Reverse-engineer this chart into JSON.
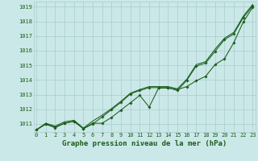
{
  "title": "Graphe pression niveau de la mer (hPa)",
  "bg_color": "#cbe8e8",
  "grid_color": "#a8cccc",
  "line_color": "#1a5c1a",
  "xlim": [
    -0.3,
    23.3
  ],
  "ylim": [
    1010.45,
    1019.35
  ],
  "yticks": [
    1011,
    1012,
    1013,
    1014,
    1015,
    1016,
    1017,
    1018,
    1019
  ],
  "xticks": [
    0,
    1,
    2,
    3,
    4,
    5,
    6,
    7,
    8,
    9,
    10,
    11,
    12,
    13,
    14,
    15,
    16,
    17,
    18,
    19,
    20,
    21,
    22,
    23
  ],
  "line_smooth": [
    1010.6,
    1011.05,
    1010.85,
    1011.15,
    1011.25,
    1010.72,
    1011.2,
    1011.6,
    1012.05,
    1012.55,
    1013.1,
    1013.35,
    1013.55,
    1013.55,
    1013.55,
    1013.4,
    1014.05,
    1015.05,
    1015.25,
    1016.1,
    1016.85,
    1017.25,
    1018.35,
    1019.15
  ],
  "line_with_markers1": [
    1010.6,
    1011.0,
    1010.78,
    1011.05,
    1011.18,
    1010.68,
    1011.05,
    1011.05,
    1011.45,
    1011.95,
    1012.45,
    1012.95,
    1012.15,
    1013.45,
    1013.45,
    1013.35,
    1013.55,
    1013.95,
    1014.25,
    1015.05,
    1015.45,
    1016.55,
    1017.95,
    1018.95
  ],
  "line_with_markers2": [
    1010.6,
    1010.98,
    1010.75,
    1011.05,
    1011.18,
    1010.68,
    1011.0,
    1011.48,
    1011.98,
    1012.48,
    1013.05,
    1013.28,
    1013.48,
    1013.48,
    1013.48,
    1013.28,
    1013.98,
    1014.95,
    1015.15,
    1015.95,
    1016.75,
    1017.15,
    1018.25,
    1019.05
  ],
  "title_color": "#1a5c1a",
  "title_fontsize": 6.5,
  "tick_fontsize": 5.0,
  "lw": 0.75,
  "marker_size": 1.8
}
